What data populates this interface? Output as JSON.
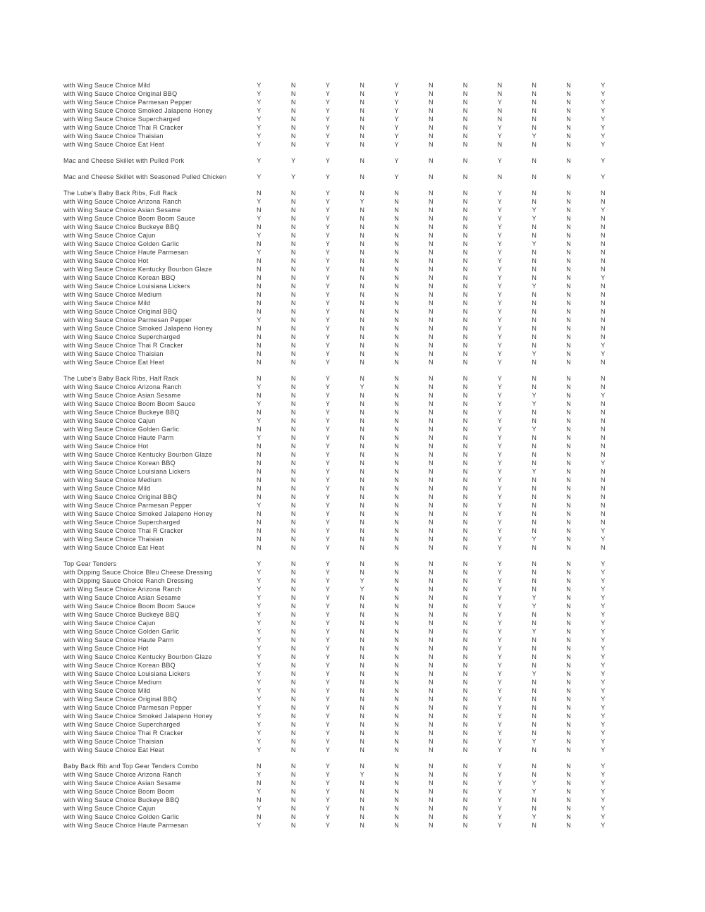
{
  "document": {
    "background": "#ffffff",
    "text_color": "#363636",
    "yes_flag": "Y",
    "no_flag": "N"
  },
  "table": {
    "value_columns": 11,
    "sections": [
      {
        "name": "wing-sauce-choices-continued",
        "rows": [
          {
            "label": "with Wing Sauce Choice Mild",
            "values": "YNYNYNNNNNY"
          },
          {
            "label": "with Wing Sauce Choice Original BBQ",
            "values": "YNYNYNNNNNY"
          },
          {
            "label": "with Wing Sauce Choice Parmesan Pepper",
            "values": "YNYNYNNYNNY"
          },
          {
            "label": "with Wing Sauce Choice Smoked Jalapeno Honey",
            "values": "YNYNYNNNNNY"
          },
          {
            "label": "with Wing Sauce Choice Supercharged",
            "values": "YNYNYNNNNNY"
          },
          {
            "label": "with Wing Sauce Choice Thai R Cracker",
            "values": "YNYNYNNYNNY"
          },
          {
            "label": "with Wing Sauce Choice Thaisian",
            "values": "YNYNYNNYYNY"
          },
          {
            "label": "with Wing Sauce Choice Eat Heat",
            "values": "YNYNYNNNNNY"
          }
        ]
      },
      {
        "name": "mac-and-cheese-skillet-pulled-pork",
        "rows": [
          {
            "label": "Mac and Cheese Skillet with Pulled Pork",
            "values": "YYYNYNNYNNY"
          }
        ]
      },
      {
        "name": "mac-and-cheese-skillet-seasoned-pulled-chicken",
        "rows": [
          {
            "label": "Mac and Cheese Skillet with Seasoned Pulled Chicken",
            "values": "YYYNYNNNNNY"
          }
        ]
      },
      {
        "name": "lubes-baby-back-ribs-full-rack",
        "rows": [
          {
            "label": "The Lube's Baby Back Ribs, Full Rack",
            "values": "NNYNNNNYNNN"
          },
          {
            "label": "with Wing Sauce Choice Arizona Ranch",
            "values": "YNYYNNNYNNN"
          },
          {
            "label": "with Wing Sauce Choice Asian Sesame",
            "values": "NNYNNNNYYNY"
          },
          {
            "label": "with Wing Sauce Choice Boom Boom Sauce",
            "values": "YNYNNNNYYNN"
          },
          {
            "label": "with Wing Sauce Choice Buckeye BBQ",
            "values": "NNYNNNNYNNN"
          },
          {
            "label": "with Wing Sauce Choice Cajun",
            "values": "YNYNNNNYNNN"
          },
          {
            "label": "with Wing Sauce Choice Golden Garlic",
            "values": "NNYNNNNYYNN"
          },
          {
            "label": "with Wing Sauce Choice Haute Parmesan",
            "values": "YNYNNNNYNNN"
          },
          {
            "label": "with Wing Sauce Choice Hot",
            "values": "NNYNNNNYNNN"
          },
          {
            "label": "with Wing Sauce Choice Kentucky Bourbon Glaze",
            "values": "NNYNNNNYNNN"
          },
          {
            "label": "with Wing Sauce Choice Korean BBQ",
            "values": "NNYNNNNYNNY"
          },
          {
            "label": "with Wing Sauce Choice Louisiana Lickers",
            "values": "NNYNNNNYYNN"
          },
          {
            "label": "with Wing Sauce Choice Medium",
            "values": "NNYNNNNYNNN"
          },
          {
            "label": "with Wing Sauce Choice Mild",
            "values": "NNYNNNNYNNN"
          },
          {
            "label": "with Wing Sauce Choice Original BBQ",
            "values": "NNYNNNNYNNN"
          },
          {
            "label": "with Wing Sauce Choice Parmesan Pepper",
            "values": "YNYNNNNYNNN"
          },
          {
            "label": "with Wing Sauce Choice Smoked Jalapeno Honey",
            "values": "NNYNNNNYNNN"
          },
          {
            "label": "with Wing Sauce Choice Supercharged",
            "values": "NNYNNNNYNNN"
          },
          {
            "label": "with Wing Sauce Choice Thai R Cracker",
            "values": "NNYNNNNYNNY"
          },
          {
            "label": "with Wing Sauce Choice Thaisian",
            "values": "NNYNNNNYYNY"
          },
          {
            "label": "with Wing Sauce Choice Eat Heat",
            "values": "NNYNNNNYNNN"
          }
        ]
      },
      {
        "name": "lubes-baby-back-ribs-half-rack",
        "rows": [
          {
            "label": "The Lube's Baby Back Ribs, Half Rack",
            "values": "NNYNNNNYNNN"
          },
          {
            "label": "with Wing Sauce Choice Arizona Ranch",
            "values": "YNYYNNNYNNN"
          },
          {
            "label": "with Wing Sauce Choice Asian Sesame",
            "values": "NNYNNNNYYNY"
          },
          {
            "label": "with Wing Sauce Choice Boom Boom Sauce",
            "values": "YNYNNNNYYNN"
          },
          {
            "label": "with Wing Sauce Choice Buckeye BBQ",
            "values": "NNYNNNNYNNN"
          },
          {
            "label": "with Wing Sauce Choice Cajun",
            "values": "YNYNNNNYNNN"
          },
          {
            "label": "with Wing Sauce Choice Golden Garlic",
            "values": "NNYNNNNYYNN"
          },
          {
            "label": "with Wing Sauce Choice Haute Parm",
            "values": "YNYNNNNYNNN"
          },
          {
            "label": "with Wing Sauce Choice Hot",
            "values": "NNYNNNNYNNN"
          },
          {
            "label": "with Wing Sauce Choice Kentucky Bourbon Glaze",
            "values": "NNYNNNNYNNN"
          },
          {
            "label": "with Wing Sauce Choice Korean BBQ",
            "values": "NNYNNNNYNNY"
          },
          {
            "label": "with Wing Sauce Choice Louisiana Lickers",
            "values": "NNYNNNNYYNN"
          },
          {
            "label": "with Wing Sauce Choice Medium",
            "values": "NNYNNNNYNNN"
          },
          {
            "label": "with Wing Sauce Choice Mild",
            "values": "NNYNNNNYNNN"
          },
          {
            "label": "with Wing Sauce Choice Original BBQ",
            "values": "NNYNNNNYNNN"
          },
          {
            "label": "with Wing Sauce Choice Parmesan Pepper",
            "values": "YNYNNNNYNNN"
          },
          {
            "label": "with Wing Sauce Choice Smoked Jalapeno Honey",
            "values": "NNYNNNNYNNN"
          },
          {
            "label": "with Wing Sauce Choice Supercharged",
            "values": "NNYNNNNYNNN"
          },
          {
            "label": "with Wing Sauce Choice Thai R Cracker",
            "values": "NNYNNNNYNNY"
          },
          {
            "label": "with Wing Sauce Choice Thaisian",
            "values": "NNYNNNNYYNY"
          },
          {
            "label": "with Wing Sauce Choice Eat Heat",
            "values": "NNYNNNNYNNN"
          }
        ]
      },
      {
        "name": "top-gear-tenders",
        "rows": [
          {
            "label": "Top Gear Tenders",
            "values": "YNYNNNNYNNY"
          },
          {
            "label": "with Dipping Sauce Choice Bleu Cheese Dressing",
            "values": "YNYNNNNYNNY"
          },
          {
            "label": "with Dipping Sauce Choice Ranch Dressing",
            "values": "YNYYNNNYNNY"
          },
          {
            "label": "with Wing Sauce Choice Arizona Ranch",
            "values": "YNYYNNNYNNY"
          },
          {
            "label": "with Wing Sauce Choice Asian Sesame",
            "values": "YNYNNNNYYNY"
          },
          {
            "label": "with Wing Sauce Choice Boom Boom Sauce",
            "values": "YNYNNNNYYNY"
          },
          {
            "label": "with Wing Sauce Choice Buckeye BBQ",
            "values": "YNYNNNNYNNY"
          },
          {
            "label": "with Wing Sauce Choice Cajun",
            "values": "YNYNNNNYNNY"
          },
          {
            "label": "with Wing Sauce Choice Golden Garlic",
            "values": "YNYNNNNYYNY"
          },
          {
            "label": "with Wing Sauce Choice Haute Parm",
            "values": "YNYNNNNYNNY"
          },
          {
            "label": "with Wing Sauce Choice Hot",
            "values": "YNYNNNNYNNY"
          },
          {
            "label": "with Wing Sauce Choice Kentucky Bourbon Glaze",
            "values": "YNYNNNNYNNY"
          },
          {
            "label": "with Wing Sauce Choice Korean BBQ",
            "values": "YNYNNNNYNNY"
          },
          {
            "label": "with Wing Sauce Choice Louisiana Lickers",
            "values": "YNYNNNNYYNY"
          },
          {
            "label": "with Wing Sauce Choice Medium",
            "values": "YNYNNNNYNNY"
          },
          {
            "label": "with Wing Sauce Choice Mild",
            "values": "YNYNNNNYNNY"
          },
          {
            "label": "with Wing Sauce Choice Original BBQ",
            "values": "YNYNNNNYNNY"
          },
          {
            "label": "with Wing Sauce Choice Parmesan Pepper",
            "values": "YNYNNNNYNNY"
          },
          {
            "label": "with Wing Sauce Choice Smoked Jalapeno Honey",
            "values": "YNYNNNNYNNY"
          },
          {
            "label": "with Wing Sauce Choice Supercharged",
            "values": "YNYNNNNYNNY"
          },
          {
            "label": "with Wing Sauce Choice Thai R Cracker",
            "values": "YNYNNNNYNNY"
          },
          {
            "label": "with Wing Sauce Choice Thaisian",
            "values": "YNYNNNNYYNY"
          },
          {
            "label": "with Wing Sauce Choice Eat Heat",
            "values": "YNYNNNNYNNY"
          }
        ]
      },
      {
        "name": "baby-back-rib-and-top-gear-tenders-combo",
        "rows": [
          {
            "label": "Baby Back Rib and Top Gear Tenders Combo",
            "values": "NNYNNNNYNNY"
          },
          {
            "label": "with Wing Sauce Choice Arizona Ranch",
            "values": "YNYYNNNYNNY"
          },
          {
            "label": "with Wing Sauce Choice Asian Sesame",
            "values": "NNYNNNNYYNY"
          },
          {
            "label": "with Wing Sauce Choice Boom Boom",
            "values": "YNYNNNNYYNY"
          },
          {
            "label": "with Wing Sauce Choice Buckeye BBQ",
            "values": "NNYNNNNYNNY"
          },
          {
            "label": "with Wing Sauce Choice Cajun",
            "values": "YNYNNNNYNNY"
          },
          {
            "label": "with Wing Sauce Choice Golden Garlic",
            "values": "NNYNNNNYYNY"
          },
          {
            "label": "with Wing Sauce Choice Haute Parmesan",
            "values": "YNYNNNNYNNY"
          }
        ]
      }
    ]
  }
}
